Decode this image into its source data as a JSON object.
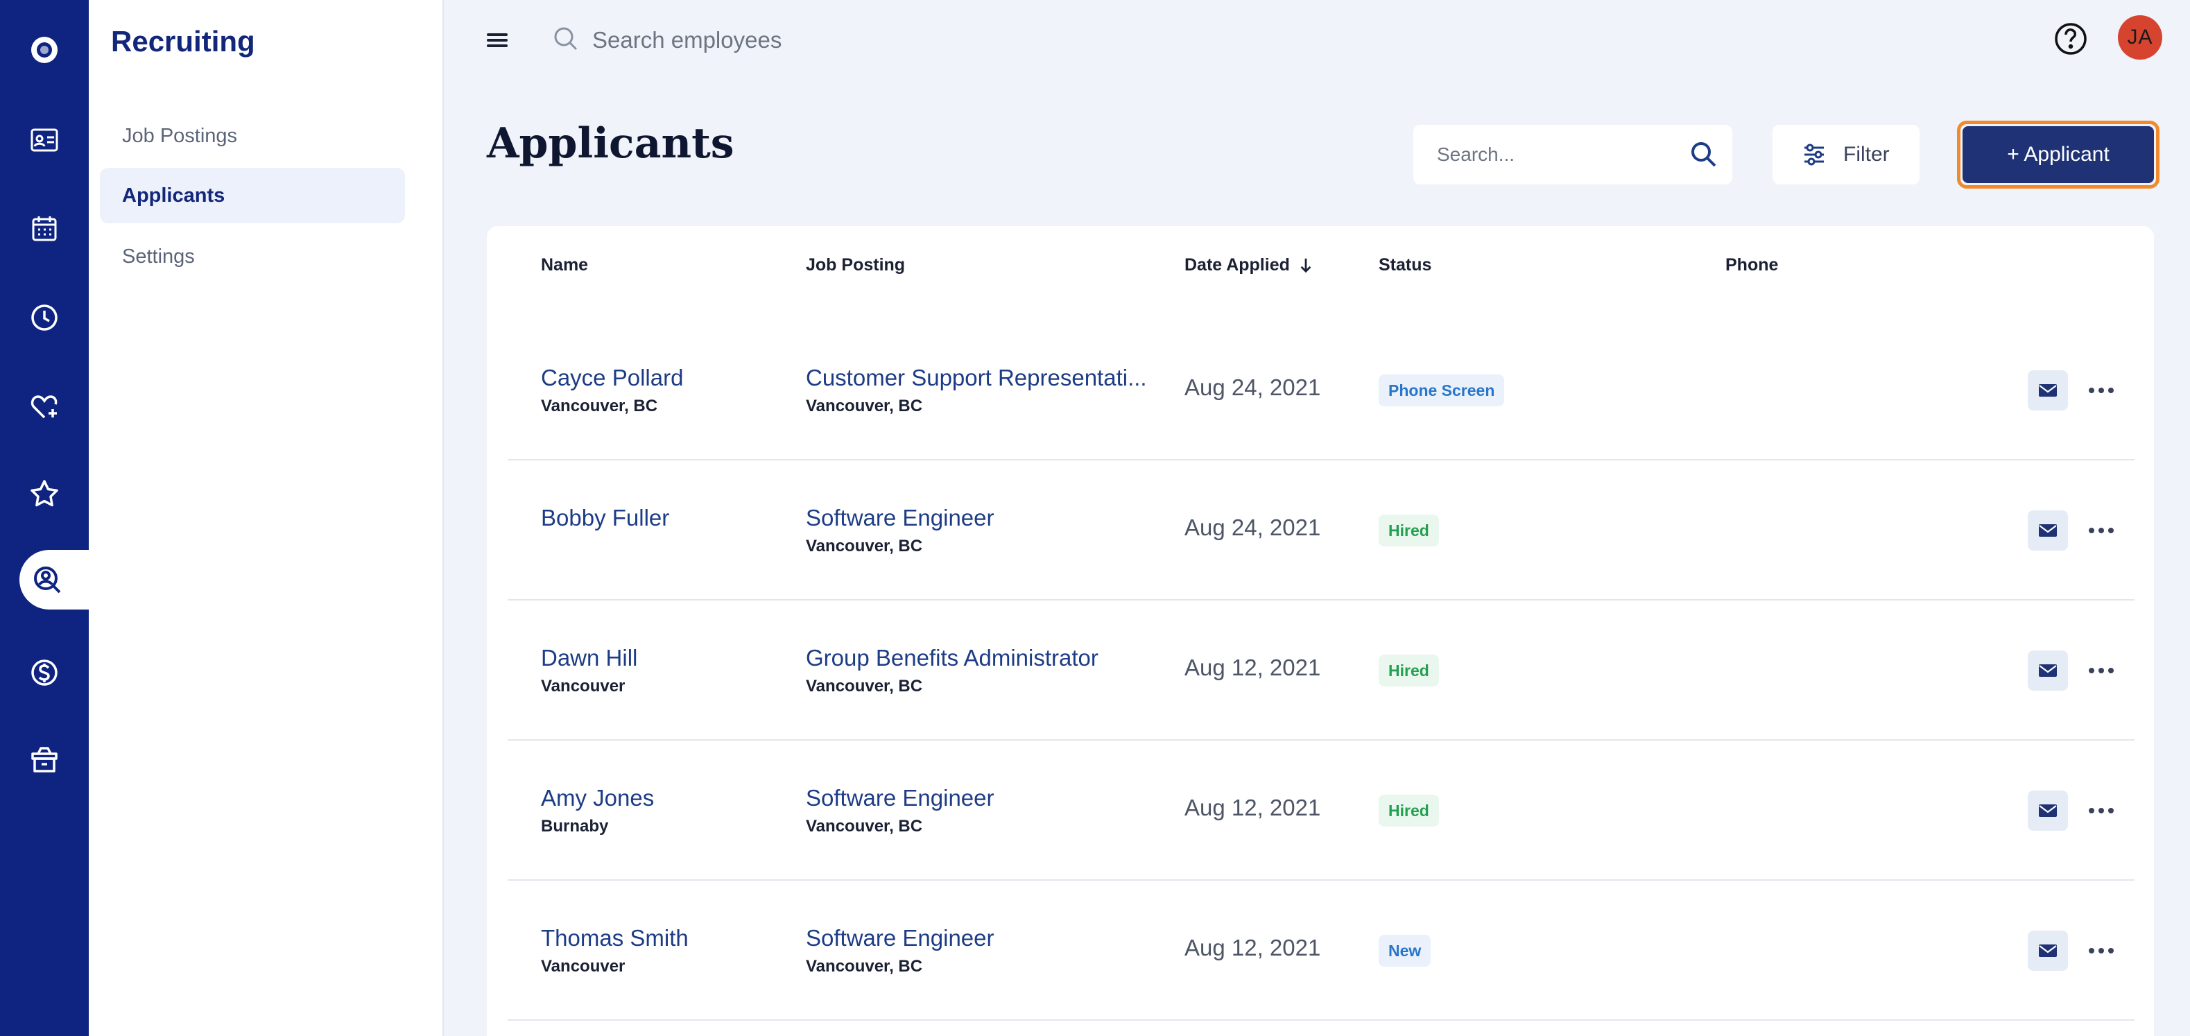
{
  "rail": {
    "items": [
      {
        "icon": "logo-circle-icon"
      },
      {
        "icon": "id-card-icon"
      },
      {
        "icon": "calendar-icon"
      },
      {
        "icon": "clock-icon"
      },
      {
        "icon": "heart-plus-icon"
      },
      {
        "icon": "star-icon"
      },
      {
        "icon": "person-search-icon",
        "active": true
      },
      {
        "icon": "dollar-icon"
      },
      {
        "icon": "gift-box-icon"
      }
    ]
  },
  "sidebar": {
    "title": "Recruiting",
    "items": [
      {
        "label": "Job Postings",
        "active": false
      },
      {
        "label": "Applicants",
        "active": true
      },
      {
        "label": "Settings",
        "active": false
      }
    ]
  },
  "topbar": {
    "search_placeholder": "Search employees",
    "avatar_initials": "JA",
    "avatar_color": "#d6442f"
  },
  "header": {
    "title": "Applicants",
    "search_placeholder": "Search...",
    "filter_label": "Filter",
    "add_label": "+ Applicant"
  },
  "table": {
    "columns": [
      "Name",
      "Job Posting",
      "Date Applied",
      "Status",
      "Phone"
    ],
    "sort_column": "Date Applied",
    "sort_direction": "descending",
    "rows": [
      {
        "name": "Cayce Pollard",
        "location": "Vancouver, BC",
        "job": "Customer Support Representati...",
        "job_location": "Vancouver, BC",
        "date": "Aug 24, 2021",
        "status": "Phone Screen",
        "phone": ""
      },
      {
        "name": "Bobby Fuller",
        "location": "",
        "job": "Software Engineer",
        "job_location": "Vancouver, BC",
        "date": "Aug 24, 2021",
        "status": "Hired",
        "phone": ""
      },
      {
        "name": "Dawn Hill",
        "location": "Vancouver",
        "job": "Group Benefits Administrator",
        "job_location": "Vancouver, BC",
        "date": "Aug 12, 2021",
        "status": "Hired",
        "phone": ""
      },
      {
        "name": "Amy Jones",
        "location": "Burnaby",
        "job": "Software Engineer",
        "job_location": "Vancouver, BC",
        "date": "Aug 12, 2021",
        "status": "Hired",
        "phone": ""
      },
      {
        "name": "Thomas Smith",
        "location": "Vancouver",
        "job": "Software Engineer",
        "job_location": "Vancouver, BC",
        "date": "Aug 12, 2021",
        "status": "New",
        "phone": ""
      }
    ]
  },
  "colors": {
    "rail_bg": "#0f2480",
    "primary_button": "#1e3275",
    "focus_outline": "#f08a2c",
    "hired": "#23a04f",
    "phone_screen": "#2776c9"
  }
}
